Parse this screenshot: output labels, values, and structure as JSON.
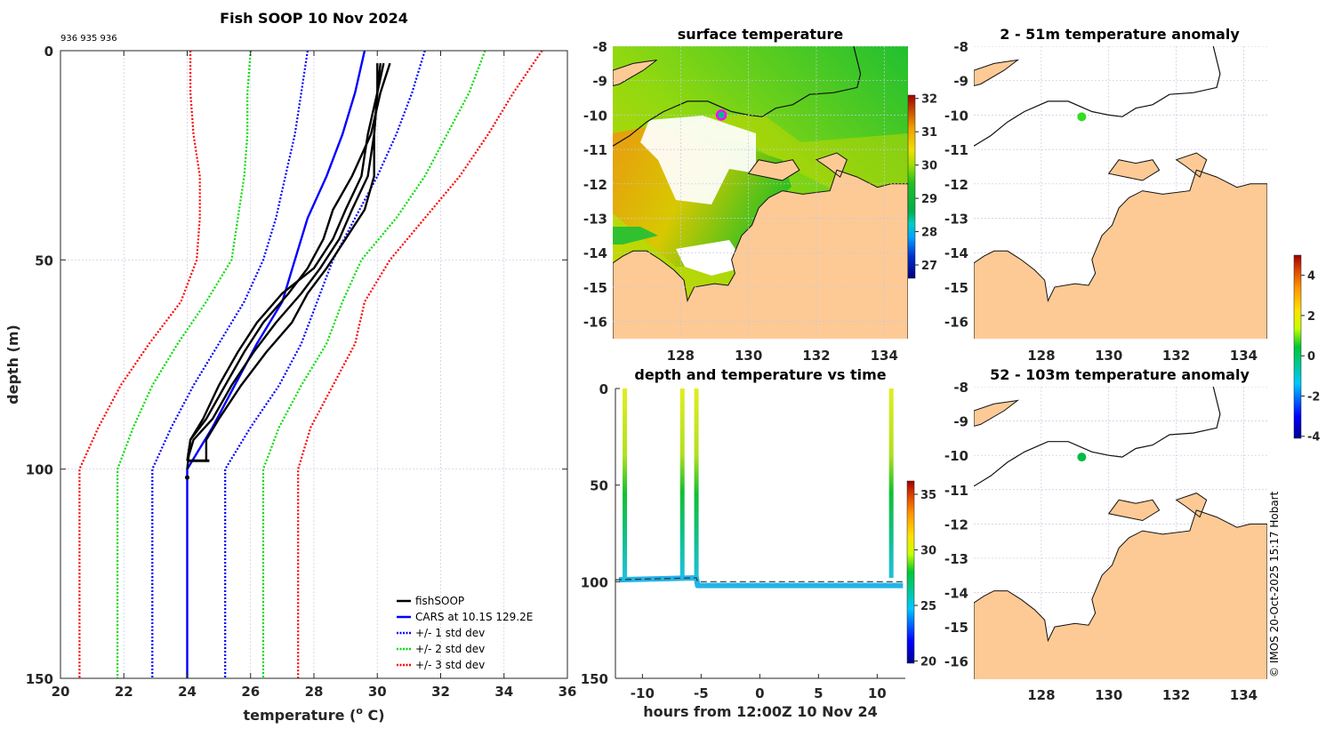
{
  "chart_data": [
    {
      "type": "line",
      "id": "profile",
      "title": "Fish SOOP 10 Nov 2024",
      "annotation": "936 935 936",
      "xlabel": "temperature (° C)",
      "xlabel_parts": {
        "pre": "temperature (",
        "sup": "o",
        "post": " C)"
      },
      "ylabel": "depth (m)",
      "xlim": [
        20,
        36
      ],
      "ylim": [
        0,
        150
      ],
      "y_reversed": true,
      "xticks": [
        20,
        22,
        24,
        26,
        28,
        30,
        32,
        34,
        36
      ],
      "yticks": [
        0,
        50,
        100,
        150
      ],
      "grid": true,
      "legend_position": "bottom-right",
      "legend": [
        {
          "label": "fishSOOP",
          "color": "#000000",
          "style": "solid"
        },
        {
          "label": "CARS at 10.1S 129.2E",
          "color": "#0000ff",
          "style": "solid"
        },
        {
          "label": "+/- 1 std dev",
          "color": "#0000ff",
          "style": "dotted"
        },
        {
          "label": "+/- 2 std dev",
          "color": "#00dd00",
          "style": "dotted"
        },
        {
          "label": "+/- 3 std dev",
          "color": "#ff0000",
          "style": "dotted"
        }
      ],
      "series": [
        {
          "name": "CARS mean",
          "color": "#0000ff",
          "style": "solid",
          "depth": [
            0,
            10,
            20,
            30,
            40,
            50,
            60,
            70,
            80,
            90,
            100,
            150
          ],
          "temp": [
            29.6,
            29.3,
            28.9,
            28.4,
            27.8,
            27.4,
            27.0,
            26.2,
            25.5,
            24.8,
            24.0,
            24.0
          ]
        },
        {
          "name": "CARS -1 std",
          "color": "#0000ff",
          "style": "dotted",
          "depth": [
            0,
            10,
            20,
            30,
            40,
            50,
            60,
            70,
            80,
            90,
            100,
            150
          ],
          "temp": [
            27.8,
            27.6,
            27.4,
            27.1,
            26.8,
            26.4,
            25.8,
            25.0,
            24.2,
            23.5,
            22.9,
            22.9
          ]
        },
        {
          "name": "CARS +1 std",
          "color": "#0000ff",
          "style": "dotted",
          "depth": [
            0,
            10,
            20,
            30,
            40,
            50,
            60,
            70,
            80,
            90,
            100,
            150
          ],
          "temp": [
            31.5,
            31.1,
            30.6,
            30.0,
            29.3,
            28.6,
            28.1,
            27.6,
            26.9,
            26.0,
            25.2,
            25.2
          ]
        },
        {
          "name": "CARS -2 std",
          "color": "#00dd00",
          "style": "dotted",
          "depth": [
            0,
            10,
            20,
            30,
            40,
            50,
            60,
            70,
            80,
            90,
            100,
            150
          ],
          "temp": [
            26.0,
            25.9,
            25.9,
            25.8,
            25.6,
            25.4,
            24.6,
            23.7,
            22.9,
            22.3,
            21.8,
            21.8
          ]
        },
        {
          "name": "CARS +2 std",
          "color": "#00dd00",
          "style": "dotted",
          "depth": [
            0,
            10,
            20,
            30,
            40,
            50,
            60,
            70,
            80,
            90,
            100,
            150
          ],
          "temp": [
            33.4,
            32.9,
            32.2,
            31.5,
            30.6,
            29.5,
            28.9,
            28.4,
            27.6,
            26.9,
            26.4,
            26.4
          ]
        },
        {
          "name": "CARS -3 std",
          "color": "#ff0000",
          "style": "dotted",
          "depth": [
            0,
            10,
            20,
            30,
            40,
            50,
            60,
            70,
            80,
            90,
            100,
            150
          ],
          "temp": [
            24.1,
            24.1,
            24.2,
            24.4,
            24.4,
            24.3,
            23.8,
            22.8,
            21.9,
            21.2,
            20.6,
            20.6
          ]
        },
        {
          "name": "CARS +3 std",
          "color": "#ff0000",
          "style": "dotted",
          "depth": [
            0,
            10,
            20,
            30,
            40,
            50,
            60,
            70,
            80,
            90,
            100,
            150
          ],
          "temp": [
            35.2,
            34.3,
            33.5,
            32.6,
            31.5,
            30.4,
            29.6,
            29.3,
            28.6,
            27.9,
            27.5,
            27.5
          ]
        },
        {
          "name": "fishSOOP cast 1",
          "color": "#000000",
          "style": "solid",
          "depth": [
            3,
            10,
            20,
            30,
            38,
            45,
            52,
            58,
            65,
            72,
            80,
            88,
            93,
            98
          ],
          "temp": [
            30.1,
            30.0,
            29.9,
            29.7,
            29.2,
            28.8,
            28.2,
            27.6,
            26.8,
            26.1,
            25.4,
            24.8,
            24.2,
            24.0
          ]
        },
        {
          "name": "fishSOOP cast 2",
          "color": "#000000",
          "style": "solid",
          "depth": [
            3,
            10,
            20,
            30,
            38,
            45,
            52,
            58,
            65,
            72,
            80,
            88,
            93,
            98
          ],
          "temp": [
            30.4,
            30.1,
            29.8,
            29.2,
            28.6,
            28.3,
            27.8,
            27.2,
            26.4,
            25.8,
            25.2,
            24.6,
            24.1,
            24.0
          ]
        },
        {
          "name": "fishSOOP cast 3",
          "color": "#000000",
          "style": "solid",
          "depth": [
            3,
            10,
            20,
            30,
            38,
            45,
            52,
            58,
            65,
            72,
            80,
            88,
            93,
            98
          ],
          "temp": [
            30.2,
            30.0,
            29.9,
            29.9,
            29.6,
            29.0,
            28.4,
            27.8,
            27.3,
            26.5,
            25.7,
            25.0,
            24.6,
            24.6
          ]
        },
        {
          "name": "fishSOOP cast 4",
          "color": "#000000",
          "style": "solid",
          "depth": [
            3,
            10,
            20,
            30,
            38,
            45,
            52,
            58,
            65,
            72,
            80,
            88,
            93,
            100
          ],
          "temp": [
            30.0,
            30.0,
            29.7,
            29.5,
            29.0,
            28.6,
            28.0,
            27.0,
            26.2,
            25.6,
            25.0,
            24.5,
            24.1,
            24.0
          ]
        }
      ]
    },
    {
      "type": "heatmap",
      "id": "surface-temperature",
      "title": "surface temperature",
      "xticks": [
        128,
        130,
        132,
        134
      ],
      "yticks": [
        -8,
        -9,
        -10,
        -11,
        -12,
        -13,
        -14,
        -15,
        -16
      ],
      "xlim": [
        126,
        134.7
      ],
      "ylim": [
        -16.5,
        -8
      ],
      "colorbar": {
        "min": 26.6,
        "max": 32.1,
        "ticks": [
          27,
          28,
          29,
          30,
          31,
          32
        ]
      },
      "marker": {
        "lon": 129.2,
        "lat": -10.0,
        "color": "#ff00ff"
      },
      "land_color": "#fdca96"
    },
    {
      "type": "scatter",
      "id": "depth-time",
      "title": "depth and temperature vs time",
      "xlabel": "hours from 12:00Z 10 Nov 24",
      "xticks": [
        -10,
        -5,
        0,
        5,
        10
      ],
      "yticks": [
        0,
        50,
        100,
        150
      ],
      "xlim": [
        -12.3,
        12.4
      ],
      "ylim": [
        0,
        150
      ],
      "y_reversed": true,
      "colorbar": {
        "min": 19.8,
        "max": 36.2,
        "ticks": [
          20,
          25,
          30,
          35
        ]
      },
      "casts": [
        {
          "hour": -11.5,
          "max_depth": 99
        },
        {
          "hour": -6.6,
          "max_depth": 97
        },
        {
          "hour": -5.4,
          "max_depth": 99
        },
        {
          "hour": 11.2,
          "max_depth": 98
        }
      ],
      "bottom_track": [
        {
          "hour": -12.0,
          "depth": 99
        },
        {
          "hour": -5.4,
          "depth": 98
        },
        {
          "hour": -5.3,
          "depth": 102
        },
        {
          "hour": 12.2,
          "depth": 102
        }
      ],
      "seafloor_dashed": [
        {
          "hour": -12.3,
          "depth": 99
        },
        {
          "hour": -5.4,
          "depth": 98
        },
        {
          "hour": -5.3,
          "depth": 100
        },
        {
          "hour": 12.4,
          "depth": 100
        }
      ]
    },
    {
      "type": "heatmap",
      "id": "anomaly-2-51",
      "title": "2 - 51m temperature anomaly",
      "xticks": [
        128,
        130,
        132,
        134
      ],
      "yticks": [
        -8,
        -9,
        -10,
        -11,
        -12,
        -13,
        -14,
        -15,
        -16
      ],
      "xlim": [
        126,
        134.7
      ],
      "ylim": [
        -16.5,
        -8
      ],
      "marker": {
        "lon": 129.2,
        "lat": -10.05,
        "value": 0.7,
        "color": "#33dd22"
      }
    },
    {
      "type": "heatmap",
      "id": "anomaly-52-103",
      "title": "52 - 103m temperature anomaly",
      "xticks": [
        128,
        130,
        132,
        134
      ],
      "yticks": [
        -8,
        -9,
        -10,
        -11,
        -12,
        -13,
        -14,
        -15,
        -16
      ],
      "xlim": [
        126,
        134.7
      ],
      "ylim": [
        -16.5,
        -8
      ],
      "marker": {
        "lon": 129.2,
        "lat": -10.05,
        "value": 0.2,
        "color": "#00bb44"
      },
      "colorbar": {
        "min": -4.1,
        "max": 5.0,
        "ticks": [
          -4,
          -2,
          0,
          2,
          4
        ]
      }
    }
  ],
  "credit": "© IMOS 20-Oct-2025 15:17 Hobart"
}
